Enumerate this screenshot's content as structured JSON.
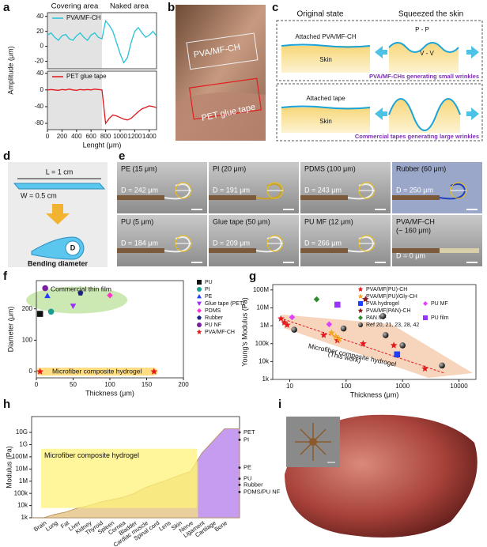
{
  "panel_labels": [
    "a",
    "b",
    "c",
    "d",
    "e",
    "f",
    "g",
    "h",
    "i"
  ],
  "panel_b": {
    "film_label": "PVA/MF-CH",
    "tape_label": "PET glue tape"
  },
  "panel_c": {
    "left_title": "Original state",
    "right_title": "Squeezed the skin",
    "top": {
      "film": "Attached PVA/MF-CH",
      "skin": "Skin",
      "peak": "P - P",
      "valley": "V - V",
      "caption": "PVA/MF-CHs generating small wrinkles"
    },
    "bottom": {
      "film": "Attached tape",
      "skin": "Skin",
      "caption": "Commercial tapes generating large wrinkles"
    }
  },
  "panel_d": {
    "length": "L = 1 cm",
    "width": "W = 0.5 cm",
    "diameter": "D",
    "caption": "Bending diameter"
  },
  "panel_e": {
    "tiles": [
      {
        "name": "PE (15 μm)",
        "diameter": "D = 242 μm"
      },
      {
        "name": "PI (20 μm)",
        "diameter": "D = 191 μm"
      },
      {
        "name": "PDMS (100 μm)",
        "diameter": "D = 243 μm"
      },
      {
        "name": "Rubber (60 μm)",
        "diameter": "D = 250 μm"
      },
      {
        "name": "PU (5 μm)",
        "diameter": "D = 184 μm"
      },
      {
        "name": "Glue tape (50 μm)",
        "diameter": "D = 209 μm"
      },
      {
        "name": "PU MF (12 μm)",
        "diameter": "D = 266 μm"
      },
      {
        "name": "PVA/MF-CH",
        "note": "(~ 160 μm)",
        "diameter": "D = 0 μm"
      }
    ]
  },
  "chart_data": [
    {
      "type": "line",
      "ylabel": "Amplitude (μm)",
      "annotations": [
        "Covering area",
        "Naked area"
      ],
      "shaded_x": [
        0,
        750
      ],
      "legend": "upper left",
      "x": [
        0,
        50,
        100,
        150,
        200,
        250,
        300,
        350,
        400,
        450,
        500,
        550,
        600,
        650,
        700,
        750,
        800,
        850,
        900,
        950,
        1000,
        1050,
        1100,
        1150,
        1200,
        1250,
        1300,
        1350,
        1400,
        1450,
        1500
      ],
      "xlim": [
        0,
        1500
      ],
      "ylim": [
        -30,
        45
      ],
      "yticks": [
        -20,
        0,
        20,
        40
      ],
      "series": [
        {
          "name": "PVA/MF-CH",
          "color": "#22c3d6",
          "values": [
            15,
            18,
            12,
            8,
            14,
            16,
            10,
            8,
            14,
            18,
            12,
            8,
            15,
            18,
            12,
            10,
            34,
            28,
            20,
            5,
            -10,
            -22,
            -15,
            5,
            20,
            25,
            18,
            12,
            15,
            20,
            14
          ]
        }
      ]
    },
    {
      "type": "line",
      "xlabel": "Lenght (μm)",
      "shaded_x": [
        0,
        750
      ],
      "legend": "upper left",
      "x": [
        0,
        50,
        100,
        150,
        200,
        250,
        300,
        350,
        400,
        450,
        500,
        550,
        600,
        650,
        700,
        750,
        800,
        850,
        900,
        950,
        1000,
        1050,
        1100,
        1150,
        1200,
        1250,
        1300,
        1350,
        1400,
        1450,
        1500
      ],
      "xlim": [
        0,
        1500
      ],
      "xticks": [
        0,
        200,
        400,
        600,
        800,
        1000,
        1200,
        1400
      ],
      "ylim": [
        -95,
        45
      ],
      "yticks": [
        -80,
        -40,
        0,
        40
      ],
      "series": [
        {
          "name": "PET glue tape",
          "color": "#e0161b",
          "values": [
            0,
            1,
            0,
            -1,
            1,
            0,
            2,
            0,
            -1,
            1,
            0,
            1,
            0,
            2,
            1,
            0,
            -80,
            -68,
            -60,
            -62,
            -66,
            -70,
            -72,
            -68,
            -60,
            -52,
            -45,
            -42,
            -38,
            -40,
            -42
          ]
        }
      ]
    },
    {
      "type": "scatter",
      "xlabel": "Thickness (μm)",
      "ylabel": "Diameter (μm)",
      "annotations": [
        "Commercial thin film",
        "Microfiber composite hydrogel"
      ],
      "legend": "right",
      "xlim": [
        0,
        200
      ],
      "xticks": [
        0,
        50,
        100,
        150,
        200
      ],
      "ylim": [
        -20,
        290
      ],
      "yticks": [
        0,
        100,
        200
      ],
      "series": [
        {
          "name": "PU",
          "color": "#111111",
          "marker": "square",
          "x": [
            5
          ],
          "values": [
            184
          ]
        },
        {
          "name": "PI",
          "color": "#1a9e8f",
          "marker": "circle",
          "x": [
            20
          ],
          "values": [
            191
          ]
        },
        {
          "name": "PE",
          "color": "#1f3fff",
          "marker": "triangle",
          "x": [
            15
          ],
          "values": [
            242
          ]
        },
        {
          "name": "Glue tape (PET)",
          "color": "#9b30ff",
          "marker": "triangle-down",
          "x": [
            50
          ],
          "values": [
            209
          ]
        },
        {
          "name": "PDMS",
          "color": "#ff33cc",
          "marker": "diamond",
          "x": [
            100
          ],
          "values": [
            243
          ]
        },
        {
          "name": "Rubber",
          "color": "#1a237e",
          "marker": "pentagon",
          "x": [
            60
          ],
          "values": [
            250
          ]
        },
        {
          "name": "PU NF",
          "color": "#7b1fa2",
          "marker": "circle",
          "x": [
            12
          ],
          "values": [
            266
          ]
        },
        {
          "name": "PVA/MF-CH",
          "color": "#e31a1c",
          "marker": "star",
          "x": [
            5,
            160
          ],
          "values": [
            0,
            0
          ]
        }
      ]
    },
    {
      "type": "scatter",
      "xlabel": "Thickness (μm)",
      "ylabel": "Young's Modulus (Pa)",
      "annotations": [
        "Microfiber composite hydrogel",
        "(This work)"
      ],
      "legend": "upper right",
      "xscale": "log",
      "yscale": "log",
      "xlim": [
        5,
        20000
      ],
      "xticks": [
        10,
        100,
        1000,
        10000
      ],
      "ylim": [
        1000,
        200000000
      ],
      "yticks": [
        {
          "value": 1000,
          "label": "1k"
        },
        {
          "value": 10000,
          "label": "10k"
        },
        {
          "value": 100000,
          "label": "100k"
        },
        {
          "value": 1000000,
          "label": "1M"
        },
        {
          "value": 10000000,
          "label": "10M"
        },
        {
          "value": 100000000,
          "label": "100M"
        }
      ],
      "series": [
        {
          "name": "PVA/MF(PU)-CH",
          "color": "#e31a1c",
          "marker": "star",
          "x": [
            7,
            8,
            9,
            40,
            70,
            200,
            700,
            2500
          ],
          "values": [
            2500000,
            1500000,
            1100000,
            300000,
            150000,
            100000,
            80000,
            4000
          ]
        },
        {
          "name": "PVA/MF(PU)/Gly-CH",
          "color": "#f5a623",
          "marker": "star",
          "x": [
            55,
            65,
            75
          ],
          "values": [
            400000,
            250000,
            180000
          ]
        },
        {
          "name": "PVA hydrogel",
          "color": "#1f3fff",
          "marker": "square",
          "x": [
            800
          ],
          "values": [
            25000
          ]
        },
        {
          "name": "PU MF",
          "color": "#e040fb",
          "marker": "diamond",
          "x": [
            11,
            50
          ],
          "values": [
            3000000,
            1200000
          ]
        },
        {
          "name": "PVA/MF(PAN)-CH",
          "color": "#8b1a1a",
          "marker": "star",
          "x": [
            220
          ],
          "values": [
            30000000
          ]
        },
        {
          "name": "PAN MF",
          "color": "#2e8b2e",
          "marker": "diamond",
          "x": [
            30
          ],
          "values": [
            30000000
          ]
        },
        {
          "name": "PU film",
          "color": "#9933ff",
          "marker": "square",
          "x": [
            70
          ],
          "values": [
            15000000
          ]
        },
        {
          "name": "Ref 20, 21, 23, 28, 42",
          "color": "#111111",
          "marker": "sphere",
          "x": [
            12,
            90,
            450,
            500,
            1000,
            5000
          ],
          "values": [
            600000,
            700000,
            3500000,
            300000,
            80000,
            6000
          ]
        }
      ]
    },
    {
      "type": "area",
      "ylabel": "Modulus (Pa)",
      "yscale": "log",
      "band_y": [
        6300,
        460000000
      ],
      "band_label": "Microfiber composite hydrogel",
      "categories": [
        "Brain",
        "Lung",
        "Fat",
        "Liver",
        "Kidney",
        "Thyroid",
        "Spleen",
        "Cornea",
        "Bladder",
        "Cardiac muscle",
        "Spinal cord",
        "Lens",
        "Skin",
        "Nerve",
        "Ligament",
        "Cartilage",
        "Bone"
      ],
      "values": [
        1000,
        1900,
        3000,
        6300,
        10000,
        19000,
        30000,
        47000,
        100000,
        300000,
        630000,
        1350000,
        3000000,
        6300000,
        200000000,
        2000000000,
        20000000000
      ],
      "ylim": [
        1000,
        200000000000
      ],
      "yticks": [
        {
          "value": 1000,
          "label": "1k"
        },
        {
          "value": 10000,
          "label": "10k"
        },
        {
          "value": 100000,
          "label": "100k"
        },
        {
          "value": 1000000,
          "label": "1M"
        },
        {
          "value": 10000000,
          "label": "10M"
        },
        {
          "value": 100000000,
          "label": "100M"
        },
        {
          "value": 1000000000,
          "label": "1G"
        },
        {
          "value": 10000000000,
          "label": "10G"
        }
      ],
      "reference_points": [
        {
          "name": "PET",
          "value": 10000000000
        },
        {
          "name": "PI",
          "value": 2500000000
        },
        {
          "name": "PE",
          "value": 13000000
        },
        {
          "name": "PU",
          "value": 1600000
        },
        {
          "name": "Rubber",
          "value": 500000
        },
        {
          "name": "PDMS/PU NF",
          "value": 130000
        }
      ]
    }
  ]
}
